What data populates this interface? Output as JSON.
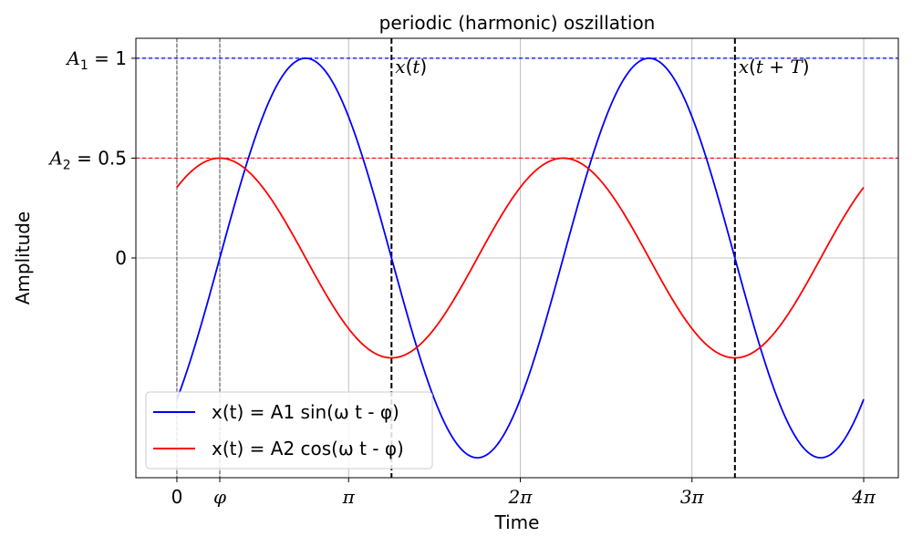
{
  "chart_data": {
    "type": "line",
    "title": "periodic (harmonic) oszillation",
    "xlabel": "Time",
    "ylabel": "Amplitude",
    "xlim": [
      -0.75,
      13.2
    ],
    "ylim": [
      -1.1,
      1.1
    ],
    "grid": true,
    "x_ticks": [
      {
        "value": 0,
        "label": "0"
      },
      {
        "value": 0.7854,
        "label": "φ"
      },
      {
        "value": 3.1416,
        "label": "π"
      },
      {
        "value": 6.2832,
        "label": "2π"
      },
      {
        "value": 9.4248,
        "label": "3π"
      },
      {
        "value": 12.5664,
        "label": "4π"
      }
    ],
    "y_ticks": [
      {
        "value": 1,
        "label_main": "A",
        "label_sub": "1",
        "label_rest": " = 1"
      },
      {
        "value": 0.5,
        "label_main": "A",
        "label_sub": "2",
        "label_rest": " = 0.5"
      },
      {
        "value": 0,
        "label_main": "",
        "label_sub": "",
        "label_rest": "0"
      }
    ],
    "amplitudes": {
      "A1": 1,
      "A2": 0.5
    },
    "phase": 0.7854,
    "omega": 1,
    "t_range": [
      0,
      12.5664
    ],
    "series": [
      {
        "name": "x(t) = A1 sin(ω t - φ)",
        "function": "sin",
        "amplitude": 1,
        "color": "#0000ff"
      },
      {
        "name": "x(t) = A2 cos(ω t - φ)",
        "function": "cos",
        "amplitude": 0.5,
        "color": "#ff0000"
      }
    ],
    "reference_lines": [
      {
        "orientation": "horizontal",
        "value": 1,
        "color": "#0000ff",
        "style": "dashed"
      },
      {
        "orientation": "horizontal",
        "value": 0.5,
        "color": "#ff0000",
        "style": "dashed"
      },
      {
        "orientation": "vertical",
        "value": 0,
        "color": "#444444",
        "style": "dashed-thin"
      },
      {
        "orientation": "vertical",
        "value": 0.7854,
        "color": "#444444",
        "style": "dashed-thin"
      },
      {
        "orientation": "vertical",
        "value": 3.927,
        "color": "#000000",
        "style": "dashed-bold"
      },
      {
        "orientation": "vertical",
        "value": 10.2102,
        "color": "#000000",
        "style": "dashed-bold"
      }
    ],
    "annotations": [
      {
        "text_main": "x",
        "text_rest": "(",
        "text_var": "t",
        "text_end": ")",
        "x": 3.927,
        "y": 0.93
      },
      {
        "text_main": "x",
        "text_rest": "(",
        "text_var": "t + T",
        "text_end": ")",
        "x": 10.2102,
        "y": 0.93
      }
    ],
    "legend_position": "lower-left"
  }
}
